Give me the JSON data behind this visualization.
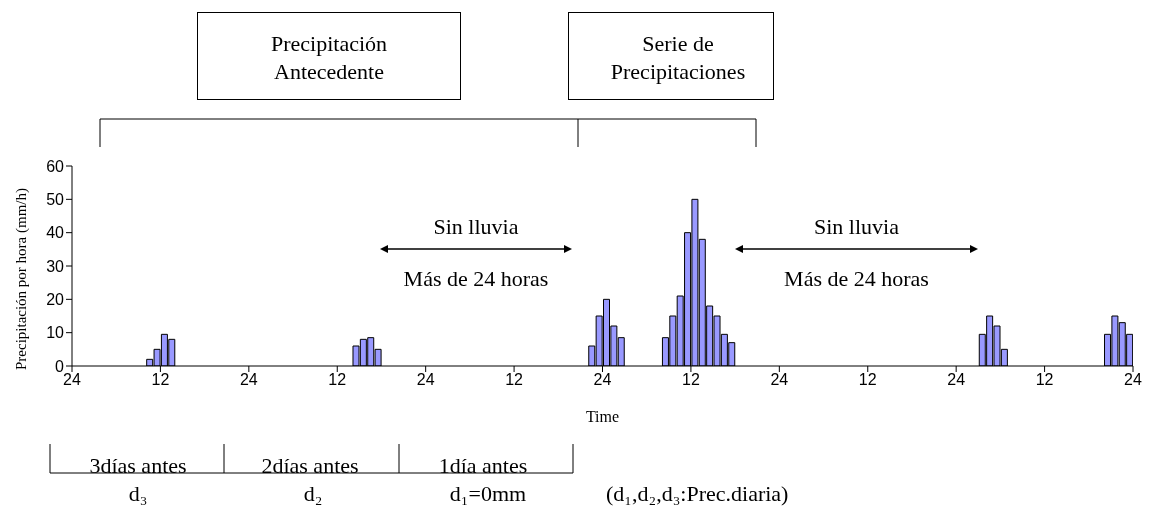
{
  "chart_data": {
    "type": "bar",
    "xlabel": "Time",
    "ylabel": "Precipitación por hora (mm/h)",
    "xlim": [
      "--01-01T00:00",
      "--01-07T00:00"
    ],
    "xticks": [
      {
        "value": "--01-01T00:00",
        "label": "24"
      },
      {
        "value": "--01-01T12:00",
        "label": "12"
      },
      {
        "value": "--01-02T00:00",
        "label": "24"
      },
      {
        "value": "--01-02T12:00",
        "label": "12"
      },
      {
        "value": "--01-03T00:00",
        "label": "24"
      },
      {
        "value": "--01-03T12:00",
        "label": "12"
      },
      {
        "value": "--01-04T00:00",
        "label": "24"
      },
      {
        "value": "--01-04T12:00",
        "label": "12"
      },
      {
        "value": "--01-05T00:00",
        "label": "24"
      },
      {
        "value": "--01-05T12:00",
        "label": "12"
      },
      {
        "value": "--01-06T00:00",
        "label": "24"
      },
      {
        "value": "--01-06T12:00",
        "label": "12"
      },
      {
        "value": "--01-07T00:00",
        "label": "24"
      }
    ],
    "ylim": [
      0,
      60
    ],
    "yticks": [
      0,
      10,
      20,
      30,
      40,
      50,
      60
    ],
    "x": [
      "--01-01T10:30",
      "--01-01T11:30",
      "--01-01T12:30",
      "--01-01T13:30",
      "--01-02T14:30",
      "--01-02T15:30",
      "--01-02T16:30",
      "--01-02T17:30",
      "--01-03T22:30",
      "--01-03T23:30",
      "--01-04T00:30",
      "--01-04T01:30",
      "--01-04T02:30",
      "--01-04T08:30",
      "--01-04T09:30",
      "--01-04T10:30",
      "--01-04T11:30",
      "--01-04T12:30",
      "--01-04T13:30",
      "--01-04T14:30",
      "--01-04T15:30",
      "--01-04T16:30",
      "--01-04T17:30",
      "--01-06T03:30",
      "--01-06T04:30",
      "--01-06T05:30",
      "--01-06T06:30",
      "--01-06T20:30",
      "--01-06T21:30",
      "--01-06T22:30",
      "--01-06T23:30"
    ],
    "values": [
      2,
      5,
      9.5,
      8,
      6,
      8,
      8.5,
      5,
      6,
      15,
      20,
      12,
      8.5,
      8.5,
      15,
      21,
      40,
      50,
      38,
      18,
      15,
      9.5,
      7,
      9.5,
      15,
      12,
      5,
      9.5,
      15,
      13,
      9.5
    ],
    "color": "#9999ff",
    "grid": false,
    "legend": false,
    "annotations": [
      "Precipitación Antecedente",
      "Serie de Precipitaciones",
      "Sin lluvia",
      "Más de 24 horas",
      "Sin lluvia",
      "Más de 24 horas",
      "3días antes",
      "2días antes",
      "1día antes",
      "d₃",
      "d₂",
      "d₁=0mm",
      "(d₁,d₂,d₃:Prec.diaria)"
    ]
  }
}
